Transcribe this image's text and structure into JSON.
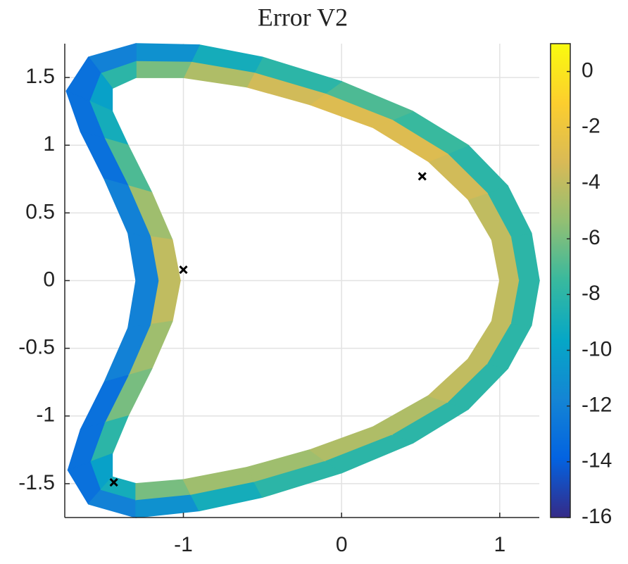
{
  "chart_data": {
    "type": "band",
    "title": "Error V2",
    "xlim": [
      -1.75,
      1.25
    ],
    "ylim": [
      -1.75,
      1.75
    ],
    "xticks": [
      -1,
      0,
      1
    ],
    "yticks": [
      1.5,
      1,
      0.5,
      0,
      -0.5,
      -1,
      -1.5
    ],
    "grid": true,
    "colormap": "parula",
    "clim": [
      -16,
      1
    ],
    "cticks": [
      0,
      -2,
      -4,
      -6,
      -8,
      -10,
      -12,
      -14,
      -16
    ],
    "band": {
      "inner_x": [
        1.0,
        0.95,
        0.8,
        0.55,
        0.2,
        -0.2,
        -0.6,
        -1.0,
        -1.3,
        -1.45,
        -1.45,
        -1.35,
        -1.2,
        -1.07,
        -1.02,
        -1.07,
        -1.2,
        -1.35,
        -1.45,
        -1.45,
        -1.3,
        -1.0,
        -0.6,
        -0.2,
        0.2,
        0.55,
        0.8,
        0.95,
        1.0
      ],
      "inner_y": [
        0,
        0.3,
        0.6,
        0.88,
        1.13,
        1.3,
        1.43,
        1.5,
        1.5,
        1.42,
        1.25,
        1.0,
        0.65,
        0.3,
        0,
        -0.3,
        -0.65,
        -1.0,
        -1.28,
        -1.45,
        -1.5,
        -1.47,
        -1.38,
        -1.25,
        -1.08,
        -0.85,
        -0.58,
        -0.3,
        0
      ],
      "outer_x": [
        1.25,
        1.2,
        1.05,
        0.8,
        0.45,
        0,
        -0.5,
        -0.9,
        -1.3,
        -1.6,
        -1.74,
        -1.65,
        -1.5,
        -1.35,
        -1.3,
        -1.35,
        -1.5,
        -1.65,
        -1.73,
        -1.6,
        -1.3,
        -0.9,
        -0.5,
        0,
        0.45,
        0.8,
        1.05,
        1.2,
        1.25
      ],
      "outer_y": [
        0,
        0.35,
        0.7,
        1.0,
        1.25,
        1.47,
        1.65,
        1.74,
        1.75,
        1.65,
        1.4,
        1.1,
        0.75,
        0.35,
        0,
        -0.35,
        -0.75,
        -1.1,
        -1.4,
        -1.65,
        -1.75,
        -1.7,
        -1.6,
        -1.42,
        -1.2,
        -0.95,
        -0.65,
        -0.33,
        0
      ],
      "inner_values": [
        -4,
        -4,
        -3.5,
        -3,
        -3,
        -3.5,
        -4.5,
        -6,
        -8,
        -10,
        -9,
        -7,
        -5,
        -4,
        -4,
        -5,
        -6,
        -8,
        -10,
        -9,
        -6,
        -5,
        -5,
        -4.5,
        -4.5,
        -4,
        -4,
        -4
      ],
      "outer_values": [
        -8,
        -8,
        -8,
        -7.5,
        -7,
        -8,
        -9,
        -11,
        -12,
        -13,
        -13,
        -13,
        -12,
        -12,
        -12,
        -12,
        -13,
        -13,
        -13,
        -12,
        -11,
        -9,
        -8,
        -8,
        -8,
        -8,
        -8,
        -8
      ]
    },
    "markers": {
      "x": [
        0.51,
        -1.0,
        -1.44
      ],
      "y": [
        0.77,
        0.08,
        -1.49
      ],
      "color": "#000000"
    }
  }
}
